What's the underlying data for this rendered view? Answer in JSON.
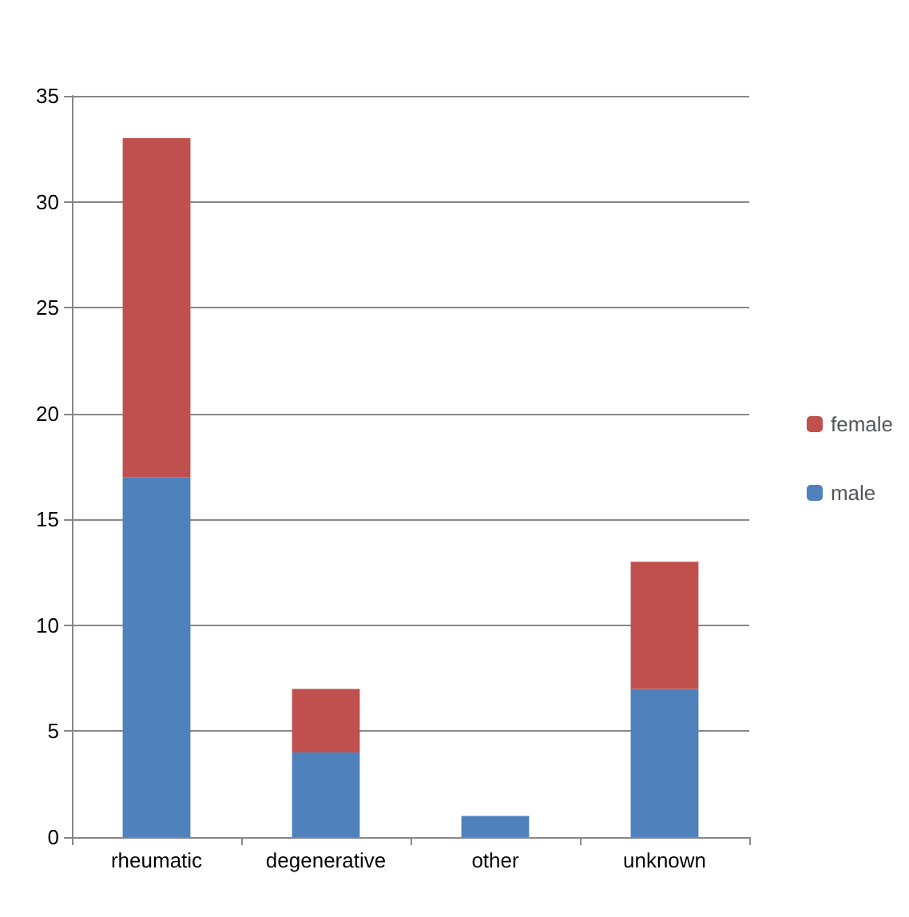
{
  "chart_data": {
    "type": "bar",
    "stacked": true,
    "categories": [
      "rheumatic",
      "degenerative",
      "other",
      "unknown"
    ],
    "series": [
      {
        "name": "male",
        "color": "#4f81bd",
        "values": [
          17,
          4,
          1,
          7
        ]
      },
      {
        "name": "female",
        "color": "#c0504d",
        "values": [
          16,
          3,
          0,
          6
        ]
      }
    ],
    "ylim": [
      0,
      35
    ],
    "yticks": [
      0,
      5,
      10,
      15,
      20,
      25,
      30,
      35
    ],
    "grid": "y",
    "legend": "right"
  }
}
